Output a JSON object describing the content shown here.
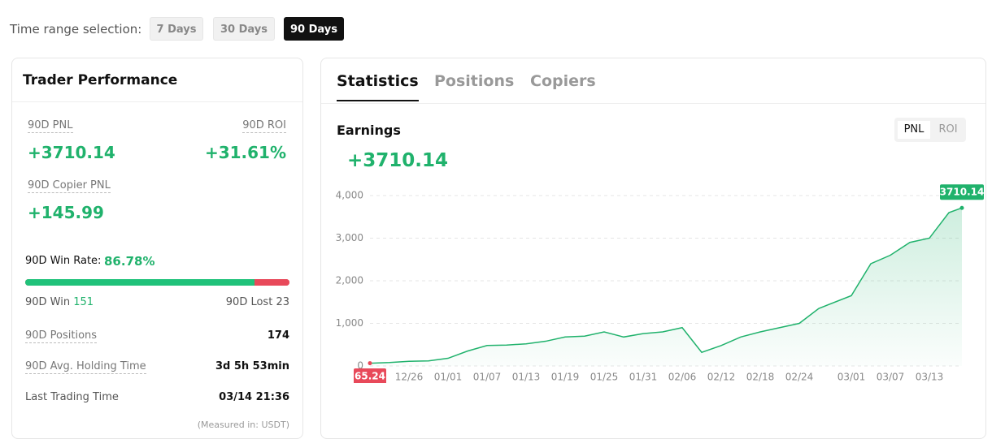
{
  "time_range": {
    "label": "Time range selection:",
    "options": [
      "7 Days",
      "30 Days",
      "90 Days"
    ]
  },
  "performance": {
    "title": "Trader Performance",
    "pnl_label": "90D PNL",
    "pnl": "+3710.14",
    "roi_label": "90D ROI",
    "roi": "+31.61%",
    "copier_pnl_label": "90D Copier PNL",
    "copier_pnl": "+145.99",
    "win_rate_label": "90D Win Rate:",
    "win_rate": "86.78%",
    "win_label": "90D Win",
    "win": 151,
    "lost_label": "90D Lost",
    "lost": 23,
    "rows": [
      [
        "90D Positions",
        "174"
      ],
      [
        "90D Avg. Holding Time",
        "3d 5h 53min"
      ],
      [
        "Last Trading Time",
        "03/14 21:36"
      ]
    ],
    "note": "(Measured in: USDT)"
  },
  "tabs": [
    "Statistics",
    "Positions",
    "Copiers"
  ],
  "earnings": {
    "title": "Earnings",
    "value": "+3710.14",
    "toggle": [
      "PNL",
      "ROI"
    ]
  },
  "chart_data": {
    "type": "line",
    "x": [
      "12/20",
      "12/23",
      "12/26",
      "12/29",
      "01/01",
      "01/04",
      "01/07",
      "01/10",
      "01/13",
      "01/16",
      "01/19",
      "01/22",
      "01/25",
      "01/28",
      "01/31",
      "02/03",
      "02/06",
      "02/09",
      "02/12",
      "02/15",
      "02/18",
      "02/21",
      "02/24",
      "02/27",
      "03/01",
      "03/04",
      "03/07",
      "03/10",
      "03/13",
      "03/16",
      "03/18"
    ],
    "values": [
      65.24,
      80,
      110,
      120,
      180,
      350,
      480,
      490,
      520,
      580,
      680,
      700,
      800,
      680,
      760,
      800,
      900,
      320,
      480,
      680,
      800,
      900,
      1000,
      1350,
      1650,
      2400,
      2600,
      2900,
      3000,
      3600,
      3710.14
    ],
    "color": "#20b26c",
    "ylim": [
      0,
      4000
    ],
    "yticks": [
      0,
      {
        "value": 1000,
        "label": "1,000"
      },
      {
        "value": 2000,
        "label": "2,000"
      },
      {
        "value": 3000,
        "label": "3,000"
      },
      {
        "value": 4000,
        "label": "4,000"
      }
    ],
    "xticks": [
      "12/26",
      "01/01",
      "01/07",
      "01/13",
      "01/19",
      "01/25",
      "01/31",
      "02/06",
      "02/12",
      "02/18",
      "02/24",
      "03/01",
      "03/07",
      "03/13"
    ],
    "grid": true
  }
}
